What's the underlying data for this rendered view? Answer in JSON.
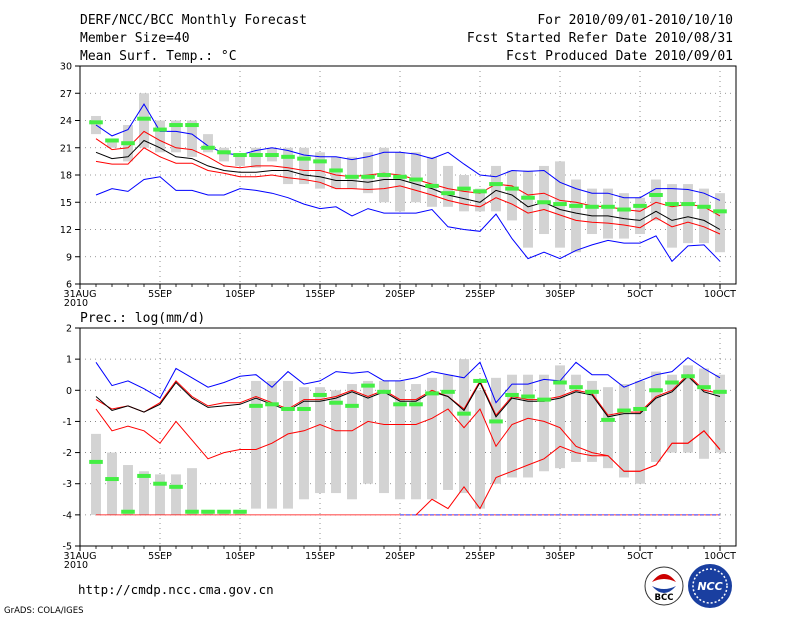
{
  "header": {
    "title": "DERF/NCC/BCC Monthly Forecast",
    "member_size": "Member Size=40",
    "variable": "Mean Surf. Temp.: °C",
    "period": "For 2010/09/01-2010/10/10",
    "started": "Fcst Started Refer Date 2010/08/31",
    "produced": "Fcst Produced Date 2010/09/01"
  },
  "footer": {
    "url": "http://cmdp.ncc.cma.gov.cn",
    "credit": "GrADS: COLA/IGES",
    "logo_bcc": "BCC",
    "logo_ncc": "NCC"
  },
  "colors": {
    "box": "#d3d3d3",
    "mean_marker": "#44ee44",
    "outer": "#0000ff",
    "inner": "#ff0000",
    "median": "#000000",
    "grid": "#777777"
  },
  "chart_data": [
    {
      "type": "box-ensemble",
      "title": "Mean Surf. Temp.: °C",
      "ylim": [
        6,
        30
      ],
      "yticks": [
        6,
        9,
        12,
        15,
        18,
        21,
        24,
        27,
        30
      ],
      "xticks": [
        {
          "day": 0,
          "label": "31AUG"
        },
        {
          "day": 5,
          "label": "5SEP"
        },
        {
          "day": 10,
          "label": "10SEP"
        },
        {
          "day": 15,
          "label": "15SEP"
        },
        {
          "day": 20,
          "label": "20SEP"
        },
        {
          "day": 25,
          "label": "25SEP"
        },
        {
          "day": 30,
          "label": "30SEP"
        },
        {
          "day": 35,
          "label": "5OCT"
        },
        {
          "day": 40,
          "label": "10OCT"
        }
      ],
      "year_label": "2010",
      "days": [
        1,
        2,
        3,
        4,
        5,
        6,
        7,
        8,
        9,
        10,
        11,
        12,
        13,
        14,
        15,
        16,
        17,
        18,
        19,
        20,
        21,
        22,
        23,
        24,
        25,
        26,
        27,
        28,
        29,
        30,
        31,
        32,
        33,
        34,
        35,
        36,
        37,
        38,
        39,
        40
      ],
      "box_low": [
        22.5,
        21.0,
        19.5,
        21.0,
        20.5,
        20.5,
        20.0,
        20.5,
        19.5,
        19.0,
        18.8,
        19.5,
        17.0,
        17.0,
        16.5,
        16.5,
        16.5,
        16.0,
        15.0,
        14.0,
        15.0,
        14.5,
        14.5,
        14.0,
        14.0,
        14.0,
        13.0,
        10.0,
        11.5,
        10.0,
        9.5,
        11.5,
        11.0,
        11.0,
        11.5,
        13.0,
        10.0,
        10.5,
        10.5,
        9.5
      ],
      "box_high": [
        24.5,
        22.0,
        23.5,
        27.0,
        24.0,
        24.0,
        24.0,
        22.5,
        21.0,
        20.2,
        21.0,
        21.0,
        21.0,
        21.0,
        20.5,
        20.0,
        20.0,
        20.5,
        21.0,
        20.5,
        20.5,
        20.0,
        19.0,
        18.0,
        16.5,
        19.0,
        18.5,
        18.5,
        19.0,
        19.5,
        17.5,
        16.5,
        16.5,
        16.0,
        15.5,
        17.5,
        17.0,
        17.0,
        16.5,
        16.0
      ],
      "ens_mean": [
        23.8,
        21.8,
        21.5,
        24.2,
        23.0,
        23.5,
        23.5,
        21.0,
        20.5,
        20.2,
        20.2,
        20.2,
        20.0,
        19.8,
        19.5,
        18.5,
        17.8,
        17.8,
        18.0,
        17.8,
        17.5,
        16.8,
        16.0,
        16.5,
        16.2,
        17.0,
        16.5,
        15.5,
        15.0,
        14.8,
        14.6,
        14.5,
        14.5,
        14.2,
        14.6,
        15.8,
        14.8,
        14.8,
        14.5,
        14.0
      ],
      "outer_max": [
        23.5,
        22.3,
        23.0,
        25.8,
        22.8,
        22.8,
        22.5,
        21.2,
        20.4,
        20.2,
        20.7,
        21.0,
        20.7,
        20.2,
        20.0,
        20.0,
        19.7,
        20.0,
        20.5,
        20.5,
        20.3,
        19.8,
        20.5,
        19.2,
        18.0,
        17.8,
        18.5,
        18.4,
        18.5,
        17.2,
        16.5,
        16.0,
        16.0,
        15.5,
        15.5,
        16.5,
        16.5,
        16.4,
        16.0,
        15.2
      ],
      "inner_max": [
        22.0,
        20.8,
        21.0,
        22.8,
        21.8,
        21.0,
        20.8,
        20.0,
        19.0,
        18.8,
        19.0,
        19.0,
        18.8,
        18.5,
        18.5,
        18.0,
        17.8,
        18.0,
        18.2,
        18.0,
        17.5,
        17.0,
        16.5,
        16.2,
        16.0,
        17.0,
        16.8,
        15.8,
        16.0,
        15.2,
        15.0,
        14.6,
        14.5,
        14.2,
        14.0,
        15.0,
        14.5,
        14.8,
        14.5,
        13.5
      ],
      "median": [
        20.5,
        19.8,
        20.0,
        21.8,
        21.0,
        20.0,
        19.8,
        19.0,
        18.5,
        18.3,
        18.3,
        18.5,
        18.5,
        18.0,
        17.8,
        17.4,
        17.4,
        17.2,
        17.5,
        17.5,
        17.0,
        16.5,
        15.8,
        15.4,
        15.0,
        16.3,
        15.8,
        14.5,
        15.0,
        14.2,
        13.8,
        13.5,
        13.5,
        13.2,
        13.0,
        14.0,
        13.0,
        13.4,
        13.0,
        12.0
      ],
      "inner_min": [
        19.5,
        19.2,
        19.2,
        21.0,
        20.0,
        19.3,
        19.3,
        18.5,
        18.2,
        17.8,
        17.8,
        18.0,
        17.7,
        17.5,
        17.2,
        16.5,
        16.5,
        16.4,
        16.5,
        16.8,
        16.3,
        15.8,
        15.2,
        14.8,
        14.5,
        15.5,
        14.8,
        13.8,
        14.2,
        13.6,
        13.0,
        12.8,
        12.7,
        12.5,
        12.2,
        13.3,
        12.3,
        12.8,
        12.3,
        11.5
      ],
      "outer_min": [
        15.8,
        16.5,
        16.2,
        17.5,
        17.8,
        16.3,
        16.3,
        15.8,
        15.8,
        16.5,
        16.3,
        16.0,
        15.5,
        14.8,
        14.3,
        14.5,
        13.5,
        14.3,
        13.8,
        13.8,
        13.8,
        14.2,
        12.3,
        12.0,
        11.8,
        13.7,
        11.0,
        8.8,
        9.5,
        8.8,
        9.7,
        10.3,
        10.8,
        10.5,
        10.5,
        11.3,
        8.5,
        10.2,
        10.3,
        8.5
      ]
    },
    {
      "type": "box-ensemble",
      "title": "Prec.: log(mm/d)",
      "ylim": [
        -5,
        2
      ],
      "yticks": [
        -5,
        -4,
        -3,
        -2,
        -1,
        0,
        1,
        2
      ],
      "xticks": [
        {
          "day": 0,
          "label": "31AUG"
        },
        {
          "day": 5,
          "label": "5SEP"
        },
        {
          "day": 10,
          "label": "10SEP"
        },
        {
          "day": 15,
          "label": "15SEP"
        },
        {
          "day": 20,
          "label": "20SEP"
        },
        {
          "day": 25,
          "label": "25SEP"
        },
        {
          "day": 30,
          "label": "30SEP"
        },
        {
          "day": 35,
          "label": "5OCT"
        },
        {
          "day": 40,
          "label": "10OCT"
        }
      ],
      "year_label": "2010",
      "days": [
        1,
        2,
        3,
        4,
        5,
        6,
        7,
        8,
        9,
        10,
        11,
        12,
        13,
        14,
        15,
        16,
        17,
        18,
        19,
        20,
        21,
        22,
        23,
        24,
        25,
        26,
        27,
        28,
        29,
        30,
        31,
        32,
        33,
        34,
        35,
        36,
        37,
        38,
        39,
        40
      ],
      "box_low": [
        -4.0,
        -4.0,
        -4.0,
        -4.0,
        -4.0,
        -4.0,
        -4.0,
        -4.0,
        -4.0,
        -4.0,
        -3.8,
        -3.8,
        -3.8,
        -3.5,
        -3.3,
        -3.3,
        -3.5,
        -3.0,
        -3.3,
        -3.5,
        -3.5,
        -3.5,
        -3.2,
        -3.3,
        -3.8,
        -3.0,
        -2.8,
        -2.8,
        -2.6,
        -2.5,
        -2.3,
        -2.3,
        -2.5,
        -2.8,
        -3.0,
        -2.3,
        -2.0,
        -2.0,
        -2.2,
        -2.0
      ],
      "box_high": [
        -1.4,
        -2.0,
        -2.4,
        -2.6,
        -2.7,
        -2.7,
        -2.5,
        -3.9,
        -3.9,
        -3.9,
        0.3,
        0.3,
        0.3,
        0.1,
        0.1,
        0.0,
        0.2,
        0.3,
        0.3,
        0.3,
        0.2,
        0.4,
        0.5,
        1.0,
        0.0,
        0.4,
        0.5,
        0.5,
        0.5,
        0.8,
        0.5,
        0.3,
        0.1,
        0.2,
        0.3,
        0.6,
        0.5,
        0.8,
        0.7,
        0.5
      ],
      "ens_mean": [
        -2.3,
        -2.85,
        -3.9,
        -2.75,
        -3.0,
        -3.1,
        -3.9,
        -3.9,
        -3.9,
        -3.9,
        -0.5,
        -0.45,
        -0.6,
        -0.6,
        -0.15,
        -0.4,
        -0.5,
        0.15,
        -0.05,
        -0.45,
        -0.45,
        -0.1,
        -0.05,
        -0.75,
        0.3,
        -1.0,
        -0.15,
        -0.2,
        -0.3,
        0.25,
        0.1,
        -0.05,
        -0.95,
        -0.65,
        -0.6,
        0.0,
        0.25,
        0.45,
        0.1,
        -0.05
      ],
      "outer_max": [
        0.9,
        0.15,
        0.3,
        0.05,
        -0.25,
        0.7,
        0.4,
        0.1,
        0.25,
        0.45,
        0.5,
        0.1,
        0.6,
        0.2,
        0.3,
        0.6,
        0.55,
        0.6,
        0.3,
        0.3,
        0.4,
        0.6,
        0.5,
        0.4,
        0.9,
        -0.4,
        0.2,
        0.2,
        0.35,
        0.3,
        0.9,
        0.5,
        0.5,
        0.1,
        0.3,
        0.5,
        0.6,
        1.05,
        0.7,
        0.4
      ],
      "inner_max": [
        -0.3,
        -0.6,
        -0.5,
        -0.7,
        -0.4,
        0.3,
        -0.2,
        -0.5,
        -0.4,
        -0.4,
        -0.2,
        -0.4,
        -0.6,
        -0.3,
        -0.3,
        -0.2,
        0.0,
        -0.2,
        0.0,
        -0.3,
        -0.3,
        0.0,
        -0.2,
        -0.6,
        0.3,
        -0.8,
        -0.2,
        -0.3,
        -0.3,
        -0.2,
        0.0,
        -0.1,
        -0.8,
        -0.7,
        -0.7,
        -0.2,
        0.0,
        0.5,
        0.0,
        -0.1
      ],
      "median": [
        -0.2,
        -0.65,
        -0.5,
        -0.7,
        -0.45,
        0.25,
        -0.25,
        -0.55,
        -0.5,
        -0.45,
        -0.25,
        -0.45,
        -0.65,
        -0.35,
        -0.35,
        -0.25,
        -0.05,
        -0.25,
        -0.05,
        -0.35,
        -0.35,
        -0.05,
        -0.2,
        -0.65,
        0.25,
        -0.85,
        -0.25,
        -0.35,
        -0.35,
        -0.25,
        -0.05,
        -0.15,
        -0.85,
        -0.75,
        -0.75,
        -0.25,
        -0.05,
        0.45,
        -0.05,
        -0.2
      ],
      "inner_min": [
        -0.6,
        -1.3,
        -1.15,
        -1.3,
        -1.7,
        -1.0,
        -1.6,
        -2.2,
        -2.0,
        -1.9,
        -1.9,
        -1.7,
        -1.4,
        -1.3,
        -1.1,
        -1.3,
        -1.3,
        -1.0,
        -1.1,
        -1.1,
        -1.1,
        -0.9,
        -0.6,
        -1.2,
        -0.6,
        -1.8,
        -1.1,
        -0.9,
        -1.0,
        -1.2,
        -1.8,
        -2.0,
        -2.1,
        -2.6,
        -2.6,
        -2.4,
        -1.7,
        -1.7,
        -1.3,
        -1.9
      ],
      "lower_red": [
        null,
        null,
        null,
        null,
        null,
        null,
        null,
        null,
        null,
        null,
        null,
        null,
        null,
        null,
        null,
        null,
        null,
        null,
        null,
        null,
        -4.0,
        -3.5,
        -3.8,
        -3.1,
        -3.8,
        -2.8,
        -2.6,
        -2.4,
        -2.2,
        -1.8,
        -2.0,
        -2.1,
        -2.1,
        -2.6,
        -2.6,
        -2.4,
        -1.7,
        -1.7,
        -1.3,
        -1.9
      ],
      "floor": -4.0
    }
  ]
}
